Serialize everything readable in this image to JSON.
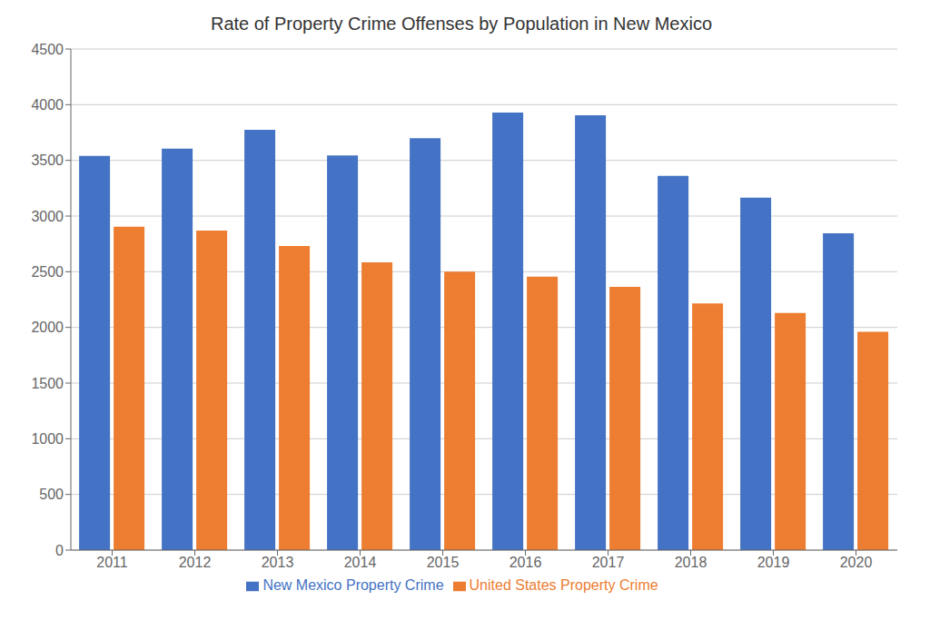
{
  "chart_data": {
    "type": "bar",
    "title": "Rate of Property Crime Offenses by Population in New Mexico",
    "categories": [
      "2011",
      "2012",
      "2013",
      "2014",
      "2015",
      "2016",
      "2017",
      "2018",
      "2019",
      "2020"
    ],
    "series": [
      {
        "name": "New Mexico Property Crime",
        "color": "#4472C4",
        "values": [
          3540,
          3605,
          3775,
          3545,
          3700,
          3930,
          3905,
          3360,
          3165,
          2845
        ]
      },
      {
        "name": "United States Property Crime",
        "color": "#ED7D31",
        "values": [
          2905,
          2870,
          2730,
          2585,
          2500,
          2455,
          2365,
          2215,
          2130,
          1960
        ]
      }
    ],
    "ylim": [
      0,
      4500
    ],
    "yticks": [
      0,
      500,
      1000,
      1500,
      2000,
      2500,
      3000,
      3500,
      4000,
      4500
    ],
    "grid": true,
    "legend": "bottom"
  }
}
